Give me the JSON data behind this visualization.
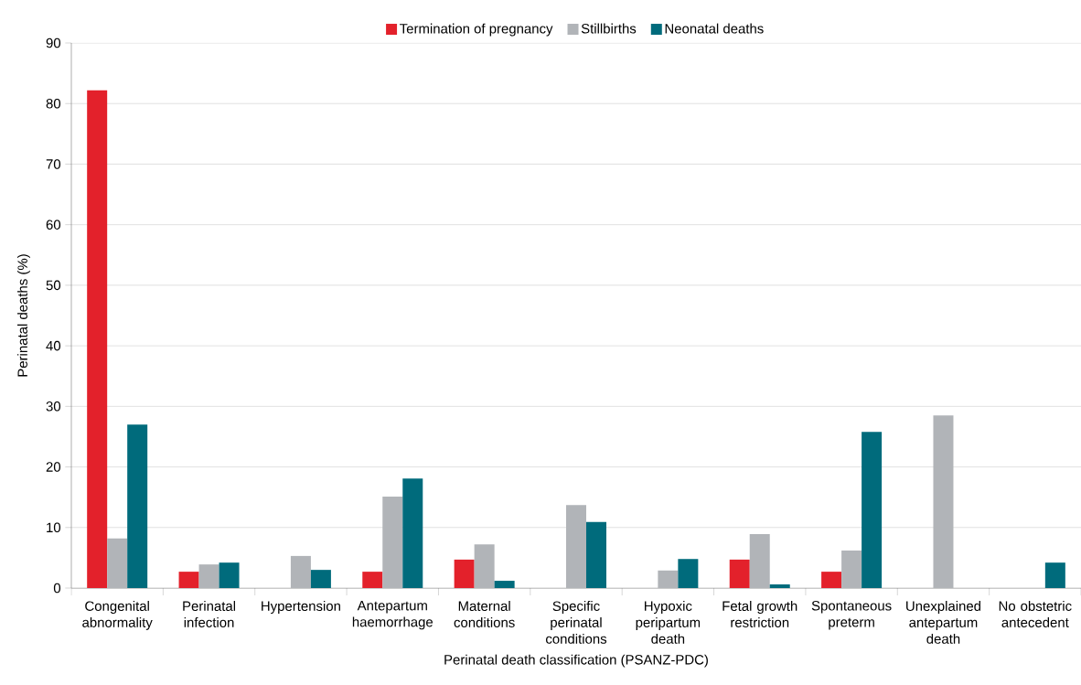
{
  "chart_data": {
    "type": "bar",
    "xlabel": "Perinatal death classification (PSANZ-PDC)",
    "ylabel": "Perinatal deaths (%)",
    "categories": [
      "Congenital abnormality",
      "Perinatal infection",
      "Hypertension",
      "Antepartum haemorrhage",
      "Maternal conditions",
      "Specific perinatal conditions",
      "Hypoxic peripartum death",
      "Fetal growth restriction",
      "Spontaneous preterm",
      "Unexplained antepartum death",
      "No obstetric antecedent"
    ],
    "series": [
      {
        "name": "Termination of pregnancy",
        "color": "#e3212b",
        "values": [
          82.2,
          2.7,
          null,
          2.7,
          4.7,
          null,
          null,
          4.7,
          2.7,
          null,
          null
        ]
      },
      {
        "name": "Stillbirths",
        "color": "#b1b4b8",
        "values": [
          8.2,
          3.9,
          5.3,
          15.1,
          7.2,
          13.7,
          2.9,
          8.9,
          6.2,
          28.5,
          null
        ]
      },
      {
        "name": "Neonatal deaths",
        "color": "#006b7c",
        "values": [
          27.0,
          4.2,
          3.0,
          18.1,
          1.2,
          10.9,
          4.8,
          0.6,
          25.8,
          null,
          4.2
        ]
      }
    ],
    "ylim": [
      0,
      90
    ],
    "yticks": [
      0,
      10,
      20,
      30,
      40,
      50,
      60,
      70,
      80,
      90
    ],
    "grid": "y",
    "legend": "top"
  }
}
